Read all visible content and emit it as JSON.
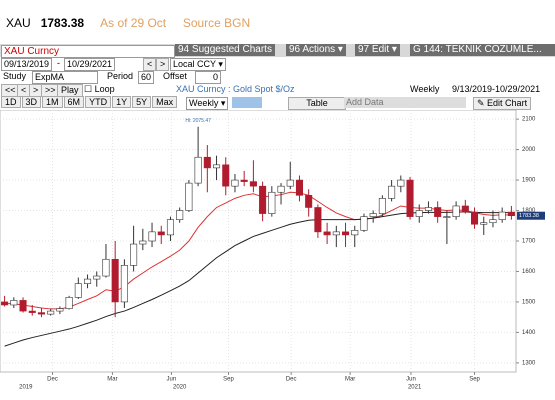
{
  "header": {
    "ticker": "XAU",
    "price": "1783.38",
    "asof": "As of 29 Oct",
    "source": "Source BGN"
  },
  "toolbar": {
    "security": "XAU Curncy",
    "menu1_num": "94",
    "menu1": "Suggested Charts",
    "menu2_num": "96",
    "menu2": "Actions",
    "menu3_num": "97",
    "menu3": "Edit",
    "menu4": "G 144: TEKNIK COZUMLE...",
    "start_date": "09/13/2019",
    "end_date": "10/29/2021",
    "currency": "Local CCY",
    "study_label": "Study",
    "study": "ExpMA",
    "period_label": "Period",
    "period": "60",
    "offset_label": "Offset",
    "offset": "0",
    "play": "Play",
    "loop": "Loop",
    "description": "XAU Curncy : Gold Spot  $/Oz",
    "frequency": "Weekly",
    "range": "9/13/2019-10/29/2021",
    "buttons": [
      "1D",
      "3D",
      "1M",
      "6M",
      "YTD",
      "1Y",
      "5Y",
      "Max"
    ],
    "freq_select": "Weekly",
    "table": "Table",
    "add_data": "Add Data",
    "edit_chart": "Edit Chart"
  },
  "chart_data": {
    "type": "candlestick",
    "open": [
      1500,
      1490,
      1505,
      1470,
      1465,
      1460,
      1470,
      1478,
      1515,
      1560,
      1575,
      1585,
      1640,
      1500,
      1620,
      1690,
      1700,
      1730,
      1720,
      1770,
      1800,
      1890,
      1975,
      1940,
      1950,
      1880,
      1900,
      1895,
      1880,
      1790,
      1860,
      1880,
      1900,
      1850,
      1810,
      1730,
      1720,
      1730,
      1720,
      1735,
      1780,
      1790,
      1840,
      1880,
      1900,
      1780,
      1800,
      1810,
      1780,
      1780,
      1815,
      1795,
      1755,
      1760,
      1770,
      1795
    ],
    "high": [
      1520,
      1515,
      1515,
      1490,
      1480,
      1478,
      1485,
      1520,
      1580,
      1590,
      1600,
      1690,
      1700,
      1640,
      1750,
      1740,
      1760,
      1750,
      1780,
      1810,
      1900,
      2075,
      2015,
      1980,
      1975,
      1920,
      1930,
      1965,
      1895,
      1880,
      1890,
      1960,
      1915,
      1870,
      1820,
      1760,
      1750,
      1760,
      1750,
      1790,
      1800,
      1850,
      1900,
      1915,
      1910,
      1820,
      1830,
      1830,
      1800,
      1830,
      1835,
      1810,
      1780,
      1800,
      1810,
      1815
    ],
    "low": [
      1485,
      1480,
      1465,
      1455,
      1450,
      1455,
      1460,
      1475,
      1510,
      1545,
      1550,
      1580,
      1450,
      1480,
      1600,
      1670,
      1680,
      1690,
      1700,
      1760,
      1795,
      1880,
      1860,
      1900,
      1850,
      1860,
      1880,
      1860,
      1765,
      1780,
      1820,
      1870,
      1830,
      1780,
      1710,
      1690,
      1680,
      1680,
      1680,
      1730,
      1760,
      1780,
      1830,
      1860,
      1770,
      1760,
      1790,
      1760,
      1690,
      1770,
      1790,
      1740,
      1720,
      1745,
      1760,
      1770
    ],
    "close": [
      1490,
      1505,
      1470,
      1465,
      1460,
      1470,
      1478,
      1515,
      1560,
      1575,
      1585,
      1640,
      1500,
      1620,
      1690,
      1700,
      1730,
      1720,
      1770,
      1800,
      1890,
      1975,
      1940,
      1950,
      1880,
      1900,
      1895,
      1880,
      1790,
      1860,
      1880,
      1900,
      1850,
      1810,
      1730,
      1720,
      1730,
      1720,
      1735,
      1780,
      1790,
      1840,
      1880,
      1900,
      1780,
      1800,
      1810,
      1780,
      1780,
      1815,
      1795,
      1755,
      1760,
      1770,
      1795,
      1783
    ],
    "up_color": "#ffffff",
    "down_color": "#b01c2e",
    "series": [
      {
        "name": "ExpMA",
        "color": "#d33",
        "values": [
          1495,
          1494,
          1490,
          1485,
          1480,
          1477,
          1477,
          1483,
          1495,
          1508,
          1520,
          1540,
          1535,
          1550,
          1575,
          1595,
          1615,
          1632,
          1650,
          1670,
          1700,
          1745,
          1780,
          1810,
          1825,
          1840,
          1850,
          1855,
          1845,
          1848,
          1852,
          1860,
          1858,
          1850,
          1830,
          1810,
          1792,
          1780,
          1770,
          1772,
          1775,
          1785,
          1800,
          1815,
          1810,
          1808,
          1808,
          1803,
          1800,
          1802,
          1800,
          1793,
          1787,
          1784,
          1786,
          1785
        ]
      },
      {
        "name": "MA",
        "color": "#222",
        "values": [
          1355,
          1365,
          1375,
          1383,
          1390,
          1397,
          1404,
          1411,
          1420,
          1430,
          1440,
          1452,
          1462,
          1470,
          1482,
          1495,
          1508,
          1522,
          1537,
          1552,
          1570,
          1595,
          1620,
          1645,
          1665,
          1685,
          1700,
          1715,
          1725,
          1735,
          1745,
          1755,
          1762,
          1768,
          1770,
          1770,
          1770,
          1770,
          1770,
          1772,
          1775,
          1780,
          1785,
          1790,
          1792,
          1793,
          1794,
          1794,
          1794,
          1795,
          1795,
          1794,
          1793,
          1793,
          1793,
          1793
        ]
      }
    ],
    "ylim": [
      1270,
      2130
    ],
    "yticks": [
      1300,
      1400,
      1500,
      1600,
      1700,
      1800,
      1900,
      2000,
      2100
    ],
    "xlim": [
      0,
      56
    ],
    "xticks": [
      {
        "value": 5.7,
        "label": "Dec"
      },
      {
        "value": 12.2,
        "label": "Mar"
      },
      {
        "value": 18.6,
        "label": "Jun"
      },
      {
        "value": 24.8,
        "label": "Sep"
      },
      {
        "value": 31.6,
        "label": "Dec"
      },
      {
        "value": 38,
        "label": "Mar"
      },
      {
        "value": 44.6,
        "label": "Jun"
      },
      {
        "value": 51.5,
        "label": "Sep"
      }
    ],
    "year_ticks": [
      {
        "value": 2.8,
        "label": "2019"
      },
      {
        "value": 19.5,
        "label": "2020"
      },
      {
        "value": 45,
        "label": "2021"
      }
    ],
    "annotation": "Hi: 2075.47",
    "last_price": "1783.38",
    "grid": true
  }
}
